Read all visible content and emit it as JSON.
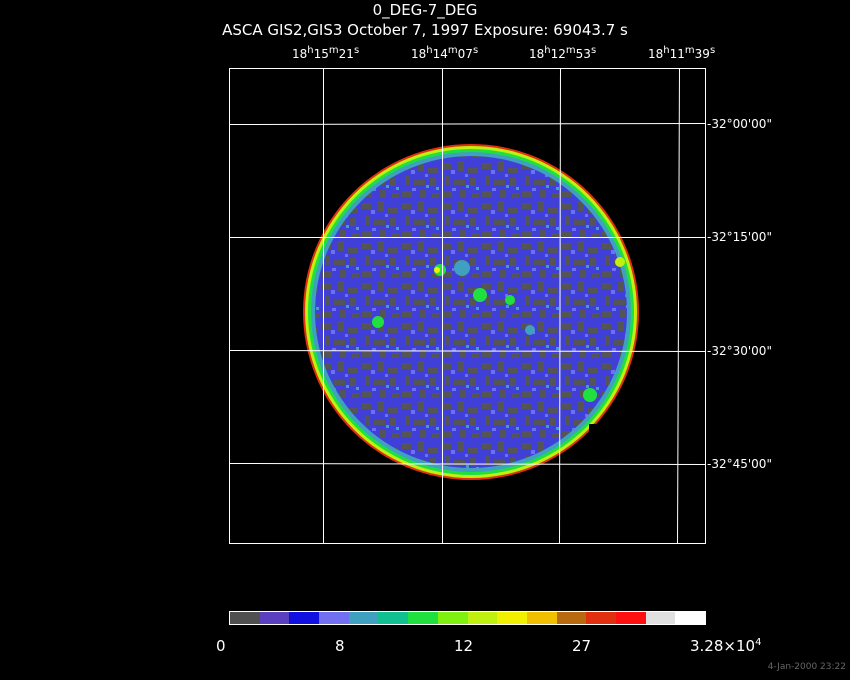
{
  "header": {
    "title": "0_DEG-7_DEG",
    "subtitle": "ASCA GIS2,GIS3 October 7, 1997 Exposure: 69043.7 s"
  },
  "ra_labels": [
    {
      "h": "18",
      "m": "15",
      "s": "21"
    },
    {
      "h": "18",
      "m": "14",
      "s": "07"
    },
    {
      "h": "18",
      "m": "12",
      "s": "53"
    },
    {
      "h": "18",
      "m": "11",
      "s": "39"
    }
  ],
  "dec_labels": [
    "-32°00'00\"",
    "-32°15'00\"",
    "-32°30'00\"",
    "-32°45'00\""
  ],
  "colorbar": {
    "colors": [
      "#505050",
      "#5a3fbf",
      "#1010e0",
      "#7070f0",
      "#3fa0c0",
      "#10c090",
      "#20e040",
      "#80f010",
      "#c0f010",
      "#f0f000",
      "#f0c000",
      "#b86a10",
      "#e03010",
      "#ff1010",
      "#e0e0e0",
      "#ffffff"
    ],
    "ticks": [
      "0",
      "8",
      "12",
      "27",
      "3.28×10"
    ],
    "exponent": "4"
  },
  "footer": "4-Jan-2000 23:22"
}
